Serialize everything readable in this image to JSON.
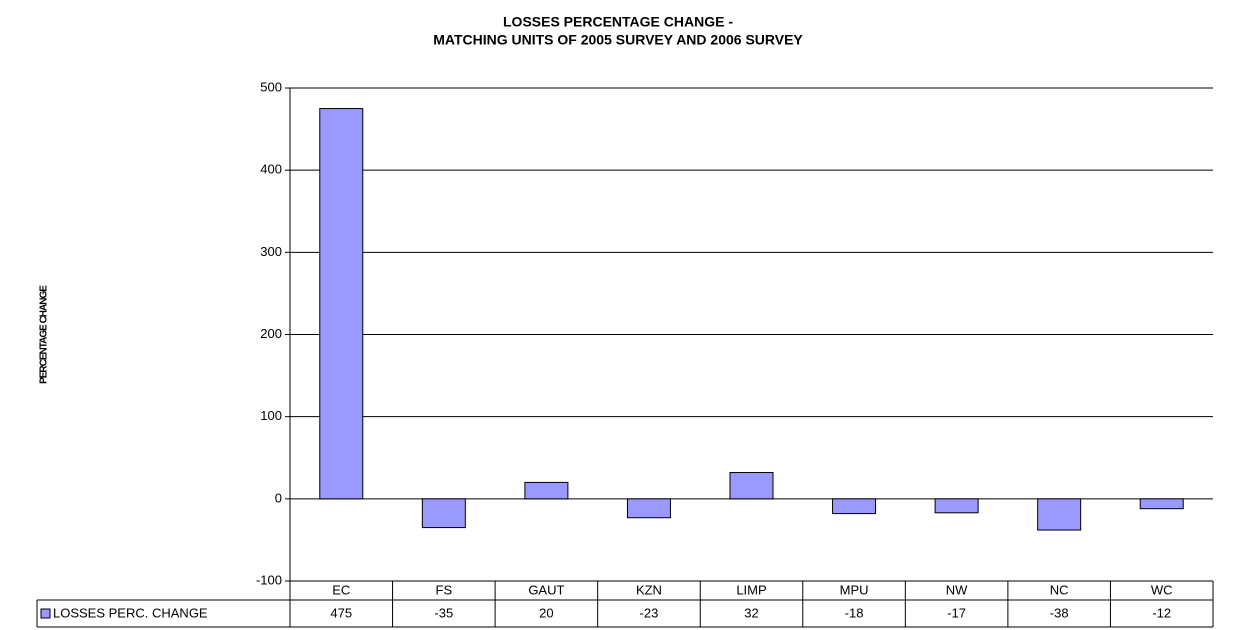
{
  "chart_data": {
    "type": "bar",
    "title": [
      "LOSSES PERCENTAGE CHANGE -",
      "MATCHING UNITS OF 2005 SURVEY AND 2006 SURVEY"
    ],
    "y_label": "PERCENTAGE CHANGE",
    "categories": [
      "EC",
      "FS",
      "GAUT",
      "KZN",
      "LIMP",
      "MPU",
      "NW",
      "NC",
      "WC"
    ],
    "series": [
      {
        "name": "LOSSES PERC. CHANGE",
        "color": "#9999ff",
        "values": [
          475,
          -35,
          20,
          -23,
          32,
          -18,
          -17,
          -38,
          -12
        ]
      }
    ],
    "ylim": [
      -100,
      500
    ],
    "yticks": [
      -100,
      0,
      100,
      200,
      300,
      400,
      500
    ],
    "grid": true
  }
}
